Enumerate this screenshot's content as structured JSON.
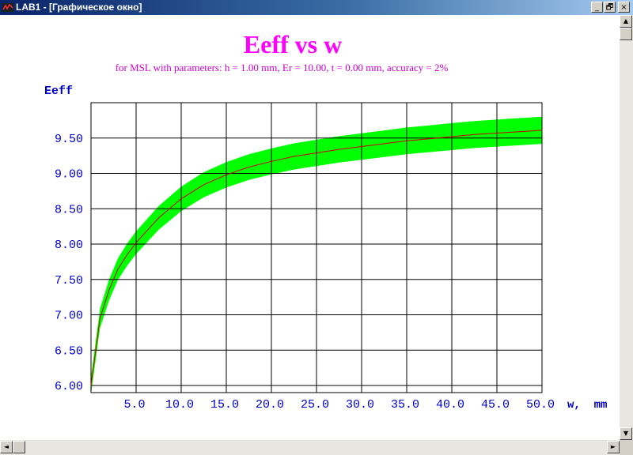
{
  "window": {
    "title": "LAB1 - [Графическое окно]",
    "buttons": {
      "minimize": "_",
      "restore": "🗗",
      "close": "×"
    }
  },
  "scrollbars": {
    "up": "▲",
    "down": "▼",
    "left": "◄",
    "right": "►"
  },
  "colors": {
    "title": "#ff00ff",
    "subtitle": "#cc00cc",
    "axis_labels": "#0000cc",
    "band": "#00ff00",
    "curve": "#cc0000",
    "grid": "#000000"
  },
  "chart_data": {
    "type": "area",
    "title": "Eeff vs w",
    "subtitle": "for MSL with parameters: h =  1.00 mm, Er = 10.00, t =  0.00 mm, accuracy = 2%",
    "ylabel": "Eeff",
    "xlabel": "w,  mm",
    "xlim": [
      0,
      50
    ],
    "ylim": [
      5.9,
      10.0
    ],
    "x_ticks": [
      "5.0",
      "10.0",
      "15.0",
      "20.0",
      "25.0",
      "30.0",
      "35.0",
      "40.0",
      "45.0",
      "50.0"
    ],
    "x_tick_values": [
      5,
      10,
      15,
      20,
      25,
      30,
      35,
      40,
      45,
      50
    ],
    "y_ticks": [
      "9.50",
      "9.00",
      "8.50",
      "8.00",
      "7.50",
      "7.00",
      "6.50",
      "6.00"
    ],
    "y_tick_values": [
      9.5,
      9.0,
      8.5,
      8.0,
      7.5,
      7.0,
      6.5,
      6.0
    ],
    "accuracy_percent": 2,
    "series": [
      {
        "x": [
          0,
          1,
          2,
          3,
          4,
          5,
          7.5,
          10,
          12.5,
          15,
          17.5,
          20,
          22.5,
          25,
          27.5,
          30,
          32.5,
          35,
          37.5,
          40,
          42.5,
          45,
          47.5,
          50
        ],
        "values": [
          6.0,
          6.95,
          7.35,
          7.65,
          7.85,
          8.02,
          8.37,
          8.64,
          8.84,
          8.98,
          9.09,
          9.17,
          9.24,
          9.29,
          9.34,
          9.38,
          9.42,
          9.46,
          9.49,
          9.52,
          9.55,
          9.57,
          9.59,
          9.61
        ]
      }
    ]
  }
}
